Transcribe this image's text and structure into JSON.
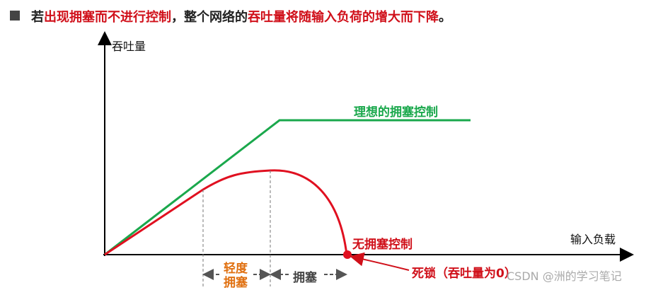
{
  "header": {
    "segments": [
      {
        "text": "若",
        "style": "plain"
      },
      {
        "text": "出现拥塞而不进行控制",
        "style": "red"
      },
      {
        "text": "，整个网络的",
        "style": "plain"
      },
      {
        "text": "吞吐量将随输入负荷的增大而下降",
        "style": "red"
      },
      {
        "text": "。",
        "style": "plain"
      }
    ]
  },
  "diagram": {
    "y_axis_label": "吞吐量",
    "x_axis_label": "输入负载",
    "ideal_label": "理想的拥塞控制",
    "no_control_label": "无拥塞控制",
    "deadlock_label": "死锁（吞吐量为0）",
    "light_congestion_label": "轻度拥塞",
    "congestion_label": "拥塞"
  },
  "watermark": "CSDN @洲的学习笔记"
}
